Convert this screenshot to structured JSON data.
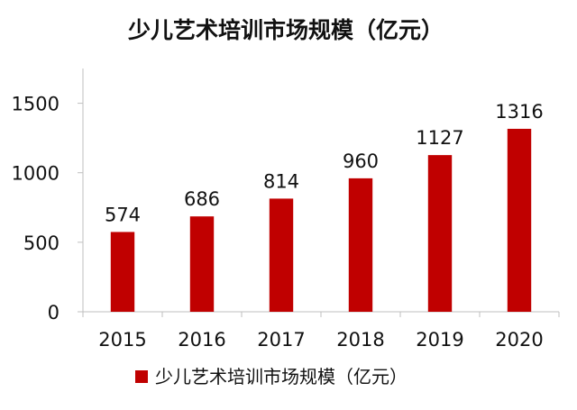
{
  "chart_data": {
    "type": "bar",
    "title": "少儿艺术培训市场规模（亿元）",
    "xlabel": "",
    "ylabel": "",
    "categories": [
      "2015",
      "2016",
      "2017",
      "2018",
      "2019",
      "2020"
    ],
    "series": [
      {
        "name": "少儿艺术培训市场规模（亿元）",
        "values": [
          574,
          686,
          814,
          960,
          1127,
          1316
        ],
        "color": "#C00000"
      }
    ],
    "ylim": [
      0,
      1750
    ],
    "yticks": [
      "0",
      "500",
      "1000",
      "1500"
    ],
    "data_labels": [
      "574",
      "686",
      "814",
      "960",
      "1127",
      "1316"
    ],
    "grid": false,
    "legend": "bottom"
  }
}
